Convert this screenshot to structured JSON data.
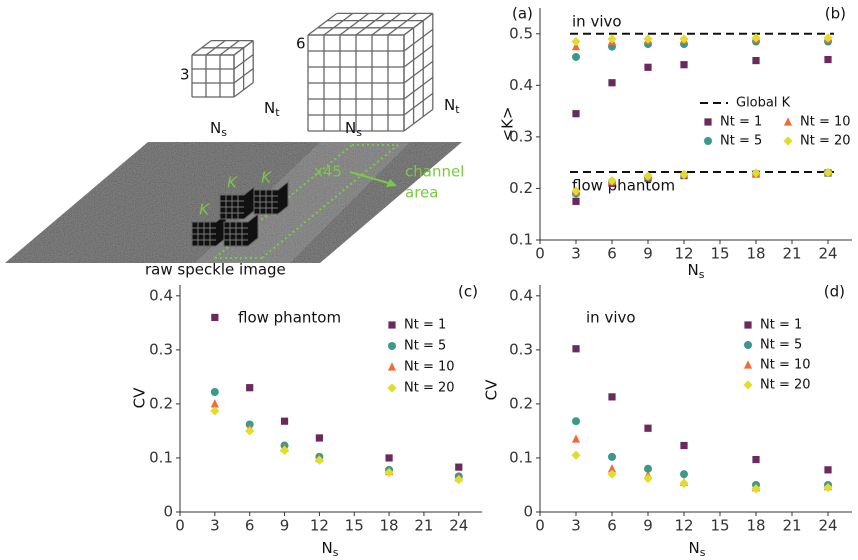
{
  "diagram": {
    "panel_label": "(a)",
    "small_cube": {
      "size": "3",
      "ns": [
        "N",
        "s"
      ],
      "nt": [
        "N",
        "t"
      ]
    },
    "large_cube": {
      "size": "6",
      "ns": [
        "N",
        "s"
      ],
      "nt": [
        "N",
        "t"
      ]
    },
    "kernels": [
      "K",
      "K",
      "K",
      "K"
    ],
    "repeat": "x45",
    "channel": [
      "channel",
      "area"
    ],
    "image_label": "raw speckle image"
  },
  "chart_data": [
    {
      "type": "scatter",
      "panel_label": "(b)",
      "x_label": [
        "N",
        "s"
      ],
      "y_label": "<K>",
      "annotations": [
        "in vivo",
        "flow phantom"
      ],
      "x": [
        3,
        6,
        9,
        12,
        18,
        24,
        3,
        6,
        9,
        12,
        18,
        24
      ],
      "xlim": [
        0,
        26
      ],
      "xticks": [
        0,
        3,
        6,
        9,
        12,
        15,
        18,
        21,
        24
      ],
      "ylim": [
        0.1,
        0.55
      ],
      "yticks": [
        0.1,
        0.2,
        0.3,
        0.4,
        0.5
      ],
      "reference_lines": {
        "name": "Global K",
        "values": [
          0.5,
          0.232
        ],
        "color": "#111111"
      },
      "legend": "center right",
      "series": [
        {
          "name": "Nt = 1",
          "marker": "square",
          "color": "#6b2a5e",
          "values": [
            0.345,
            0.405,
            0.435,
            0.44,
            0.448,
            0.45,
            0.175,
            0.21,
            0.22,
            0.225,
            0.228,
            0.23
          ]
        },
        {
          "name": "Nt = 5",
          "marker": "circle",
          "color": "#3a9a8a",
          "values": [
            0.455,
            0.475,
            0.48,
            0.48,
            0.485,
            0.485,
            0.19,
            0.213,
            0.222,
            0.226,
            0.229,
            0.23
          ]
        },
        {
          "name": "Nt = 10",
          "marker": "triangle",
          "color": "#f06a3a",
          "values": [
            0.475,
            0.485,
            0.487,
            0.488,
            0.49,
            0.49,
            0.192,
            0.214,
            0.223,
            0.227,
            0.229,
            0.231
          ]
        },
        {
          "name": "Nt = 20",
          "marker": "diamond",
          "color": "#e4dc2a",
          "values": [
            0.485,
            0.49,
            0.49,
            0.49,
            0.492,
            0.492,
            0.195,
            0.215,
            0.224,
            0.227,
            0.23,
            0.231
          ]
        }
      ]
    },
    {
      "type": "scatter",
      "panel_label": "(c)",
      "x_label": [
        "N",
        "s"
      ],
      "y_label": "CV",
      "annotations": [
        "flow phantom"
      ],
      "x": [
        3,
        6,
        9,
        12,
        18,
        24
      ],
      "xlim": [
        0,
        26
      ],
      "xticks": [
        0,
        3,
        6,
        9,
        12,
        15,
        18,
        21,
        24
      ],
      "ylim": [
        0,
        0.42
      ],
      "yticks": [
        0,
        0.1,
        0.2,
        0.3,
        0.4
      ],
      "legend": "upper right",
      "series": [
        {
          "name": "Nt = 1",
          "marker": "square",
          "color": "#6b2a5e",
          "values": [
            0.36,
            0.23,
            0.168,
            0.137,
            0.1,
            0.083
          ]
        },
        {
          "name": "Nt = 5",
          "marker": "circle",
          "color": "#3a9a8a",
          "values": [
            0.222,
            0.162,
            0.123,
            0.102,
            0.078,
            0.066
          ]
        },
        {
          "name": "Nt = 10",
          "marker": "triangle",
          "color": "#f06a3a",
          "values": [
            0.2,
            0.155,
            0.118,
            0.099,
            0.075,
            0.063
          ]
        },
        {
          "name": "Nt = 20",
          "marker": "diamond",
          "color": "#e4dc2a",
          "values": [
            0.187,
            0.15,
            0.114,
            0.096,
            0.073,
            0.06
          ]
        }
      ]
    },
    {
      "type": "scatter",
      "panel_label": "(d)",
      "x_label": [
        "N",
        "s"
      ],
      "y_label": "CV",
      "annotations": [
        "in vivo"
      ],
      "x": [
        3,
        6,
        9,
        12,
        18,
        24
      ],
      "xlim": [
        0,
        26
      ],
      "xticks": [
        0,
        3,
        6,
        9,
        12,
        15,
        18,
        21,
        24
      ],
      "ylim": [
        0,
        0.42
      ],
      "yticks": [
        0,
        0.1,
        0.2,
        0.3,
        0.4
      ],
      "legend": "upper right",
      "series": [
        {
          "name": "Nt = 1",
          "marker": "square",
          "color": "#6b2a5e",
          "values": [
            0.302,
            0.213,
            0.155,
            0.123,
            0.097,
            0.078
          ]
        },
        {
          "name": "Nt = 5",
          "marker": "circle",
          "color": "#3a9a8a",
          "values": [
            0.168,
            0.102,
            0.08,
            0.07,
            0.05,
            0.05
          ]
        },
        {
          "name": "Nt = 10",
          "marker": "triangle",
          "color": "#f06a3a",
          "values": [
            0.135,
            0.08,
            0.068,
            0.055,
            0.045,
            0.047
          ]
        },
        {
          "name": "Nt = 20",
          "marker": "diamond",
          "color": "#e4dc2a",
          "values": [
            0.105,
            0.07,
            0.062,
            0.053,
            0.043,
            0.045
          ]
        }
      ]
    }
  ]
}
